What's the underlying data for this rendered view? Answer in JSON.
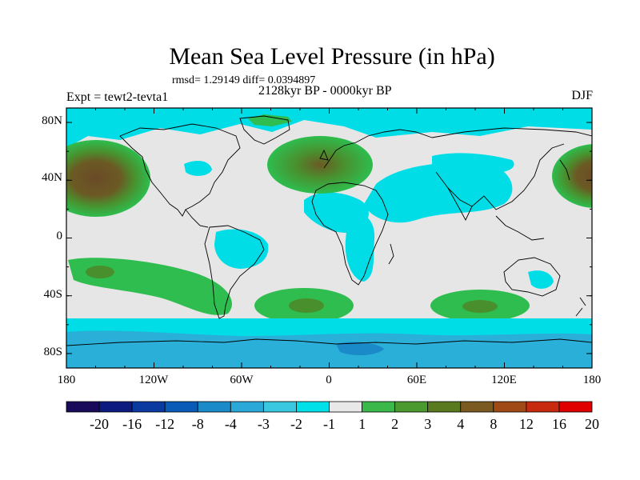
{
  "map": {
    "title": "Mean Sea Level Pressure (in hPa)",
    "stats_line": "rmsd= 1.29149 diff= 0.0394897",
    "experiment_label": "Expt = tewt2-tevta1",
    "period_label": "2128kyr BP - 0000kyr BP",
    "season": "DJF",
    "lat_ticks": [
      "80N",
      "40N",
      "0",
      "40S",
      "80S"
    ],
    "lon_ticks": [
      "180",
      "120W",
      "60W",
      "0",
      "60E",
      "120E",
      "180"
    ],
    "projection": "cylindrical equidistant",
    "lon_range": [
      -180,
      180
    ],
    "lat_range": [
      -90,
      90
    ]
  },
  "colorbar": {
    "labels": [
      "-20",
      "-16",
      "-12",
      "-8",
      "-4",
      "-3",
      "-2",
      "-1",
      "1",
      "2",
      "3",
      "4",
      "8",
      "12",
      "16",
      "20"
    ],
    "colors": [
      "#1a0a5a",
      "#0d1a80",
      "#0a3aa0",
      "#0a5ab8",
      "#1a8ac8",
      "#2aa8d8",
      "#3ac8e0",
      "#00e0e8",
      "#e8e8e8",
      "#3ab84a",
      "#4a9a30",
      "#5a7a20",
      "#7a5a20",
      "#a04a18",
      "#c82a10",
      "#e00000"
    ]
  },
  "colors": {
    "ocean_neutral": "#e6e6e6",
    "light_neg": "#00dde6",
    "mid_neg": "#2ab0d8",
    "pos1": "#2ebd4e",
    "pos2": "#4a8f2e",
    "pos3": "#6b5a24"
  }
}
